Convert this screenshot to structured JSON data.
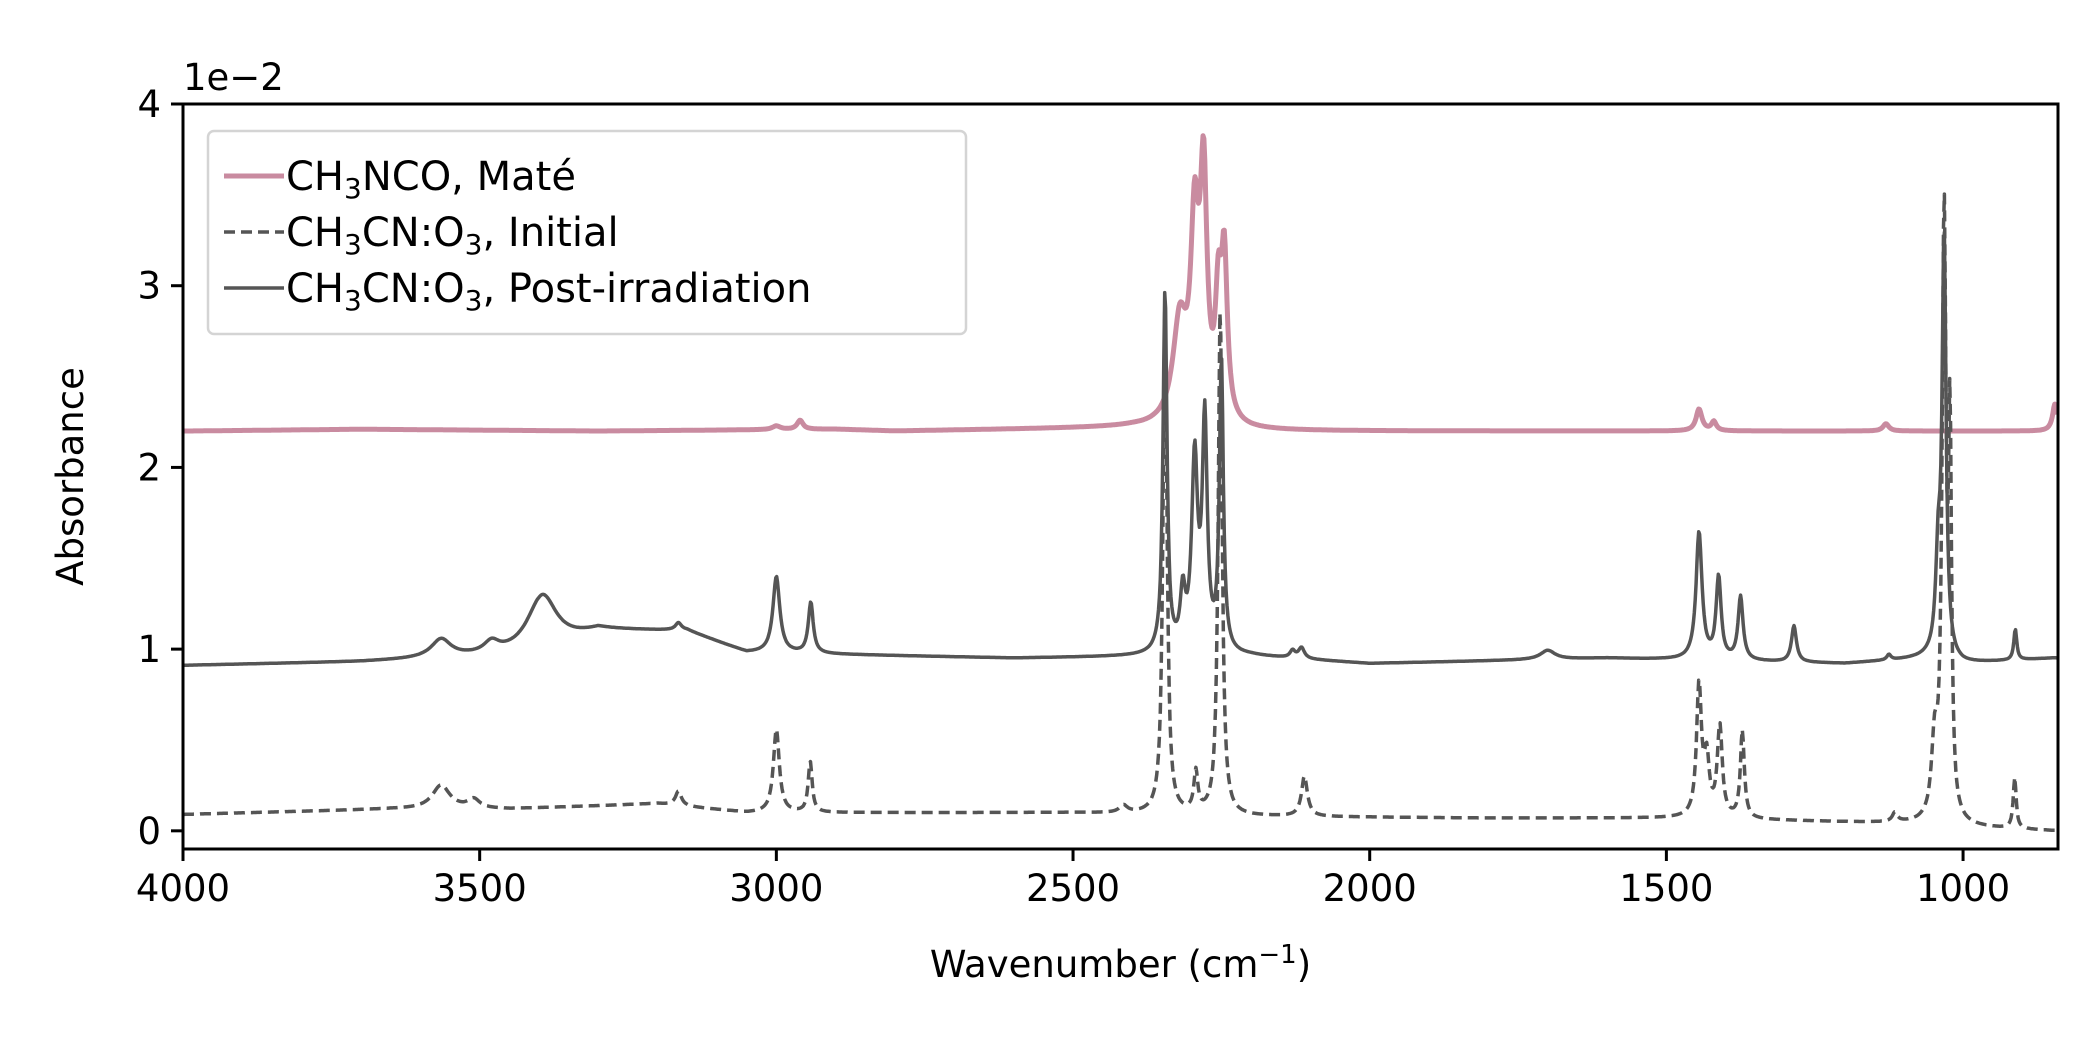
{
  "chart_data": {
    "type": "line",
    "xlabel": "Wavenumber (cm",
    "xlabel_sup": "−1",
    "xlabel_close": ")",
    "ylabel": "Absorbance",
    "offset_text": "1e−2",
    "xlim": [
      4000,
      840
    ],
    "ylim": [
      -0.1,
      4.0
    ],
    "x_reversed": true,
    "grid": false,
    "legend_position": "top-left",
    "xticks": [
      4000,
      3500,
      3000,
      2500,
      2000,
      1500,
      1000
    ],
    "xtick_labels": [
      "4000",
      "3500",
      "3000",
      "2500",
      "2000",
      "1500",
      "1000"
    ],
    "yticks": [
      0,
      1,
      2,
      3,
      4
    ],
    "ytick_labels": [
      "0",
      "1",
      "2",
      "3",
      "4"
    ],
    "series": [
      {
        "name": "CH3NCO, Maté",
        "legend_parts": [
          [
            "CH",
            ""
          ],
          [
            "3",
            "sub"
          ],
          [
            "NCO, Maté",
            ""
          ]
        ],
        "color": "#c98ba0",
        "dash": "solid",
        "baseline": [
          [
            4000,
            2.2
          ],
          [
            3700,
            2.21
          ],
          [
            3300,
            2.2
          ],
          [
            2900,
            2.21
          ],
          [
            2800,
            2.2
          ],
          [
            2400,
            2.22
          ],
          [
            2200,
            2.2
          ],
          [
            1500,
            2.2
          ],
          [
            1100,
            2.2
          ],
          [
            850,
            2.2
          ]
        ],
        "peaks": [
          [
            3000,
            0.02,
            8
          ],
          [
            2960,
            0.05,
            6
          ],
          [
            2320,
            0.55,
            14
          ],
          [
            2295,
            1.0,
            8
          ],
          [
            2280,
            1.28,
            7
          ],
          [
            2255,
            0.6,
            6
          ],
          [
            2245,
            0.85,
            6
          ],
          [
            1445,
            0.12,
            6
          ],
          [
            1420,
            0.05,
            5
          ],
          [
            1130,
            0.04,
            6
          ],
          [
            845,
            0.15,
            5
          ]
        ]
      },
      {
        "name": "CH3CN:O3, Initial",
        "legend_parts": [
          [
            "CH",
            ""
          ],
          [
            "3",
            "sub"
          ],
          [
            "CN:O",
            ""
          ],
          [
            "3",
            "sub"
          ],
          [
            ", Initial",
            ""
          ]
        ],
        "color": "#555555",
        "dash": "dashed",
        "baseline": [
          [
            4000,
            0.09
          ],
          [
            3650,
            0.12
          ],
          [
            3450,
            0.12
          ],
          [
            3200,
            0.15
          ],
          [
            3050,
            0.1
          ],
          [
            2500,
            0.1
          ],
          [
            2200,
            0.08
          ],
          [
            1800,
            0.07
          ],
          [
            1470,
            0.07
          ],
          [
            1100,
            0.04
          ],
          [
            1000,
            0.02
          ],
          [
            850,
            0.0
          ]
        ],
        "peaks": [
          [
            3565,
            0.13,
            18
          ],
          [
            3510,
            0.05,
            12
          ],
          [
            3165,
            0.08,
            6
          ],
          [
            3000,
            0.46,
            6
          ],
          [
            2943,
            0.28,
            4
          ],
          [
            2415,
            0.04,
            8
          ],
          [
            2345,
            2.8,
            4
          ],
          [
            2293,
            0.22,
            4
          ],
          [
            2252,
            2.8,
            4
          ],
          [
            2110,
            0.22,
            6
          ],
          [
            1445,
            0.72,
            5
          ],
          [
            1432,
            0.3,
            5
          ],
          [
            1410,
            0.5,
            5
          ],
          [
            1372,
            0.48,
            4
          ],
          [
            1115,
            0.05,
            5
          ],
          [
            1048,
            0.4,
            6
          ],
          [
            1032,
            3.3,
            4
          ],
          [
            1022,
            2.0,
            3
          ],
          [
            913,
            0.28,
            3
          ]
        ]
      },
      {
        "name": "CH3CN:O3, Post-irradiation",
        "legend_parts": [
          [
            "CH",
            ""
          ],
          [
            "3",
            "sub"
          ],
          [
            "CN:O",
            ""
          ],
          [
            "3",
            "sub"
          ],
          [
            ", Post-irradiation",
            ""
          ]
        ],
        "color": "#555555",
        "dash": "solid",
        "baseline": [
          [
            4000,
            0.91
          ],
          [
            3700,
            0.93
          ],
          [
            3400,
            0.97
          ],
          [
            3300,
            1.1
          ],
          [
            3150,
            1.1
          ],
          [
            3050,
            0.98
          ],
          [
            2600,
            0.95
          ],
          [
            2360,
            0.96
          ],
          [
            2200,
            0.96
          ],
          [
            2000,
            0.92
          ],
          [
            1600,
            0.95
          ],
          [
            1470,
            0.94
          ],
          [
            1200,
            0.92
          ],
          [
            1060,
            0.95
          ],
          [
            1000,
            0.92
          ],
          [
            850,
            0.95
          ]
        ],
        "peaks": [
          [
            3565,
            0.1,
            20
          ],
          [
            3480,
            0.06,
            15
          ],
          [
            3395,
            0.32,
            30
          ],
          [
            3165,
            0.04,
            6
          ],
          [
            3000,
            0.42,
            7
          ],
          [
            2942,
            0.28,
            5
          ],
          [
            2345,
            2.0,
            4
          ],
          [
            2315,
            0.3,
            5
          ],
          [
            2295,
            1.05,
            6
          ],
          [
            2278,
            1.25,
            5
          ],
          [
            2250,
            1.6,
            4
          ],
          [
            2130,
            0.04,
            5
          ],
          [
            2115,
            0.06,
            6
          ],
          [
            1700,
            0.05,
            15
          ],
          [
            1445,
            0.7,
            6
          ],
          [
            1412,
            0.45,
            5
          ],
          [
            1375,
            0.35,
            5
          ],
          [
            1285,
            0.2,
            5
          ],
          [
            1125,
            0.03,
            4
          ],
          [
            1042,
            0.5,
            5
          ],
          [
            1032,
            2.3,
            4
          ],
          [
            912,
            0.17,
            3
          ]
        ]
      }
    ]
  }
}
